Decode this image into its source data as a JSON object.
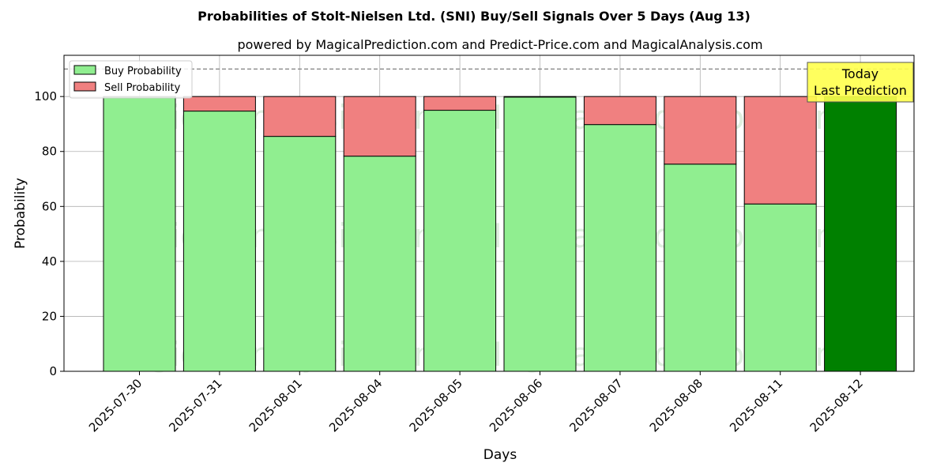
{
  "chart_data": {
    "type": "bar",
    "stacked": true,
    "title": "Probabilities of Stolt-Nielsen Ltd. (SNI) Buy/Sell Signals Over 5 Days (Aug 13)",
    "subtitle": "powered by MagicalPrediction.com and Predict-Price.com and MagicalAnalysis.com",
    "xlabel": "Days",
    "ylabel": "Probability",
    "ylim": [
      0,
      115
    ],
    "yticks": [
      0,
      20,
      40,
      60,
      80,
      100
    ],
    "grid": true,
    "legend_position": "top-left",
    "reference_line": 110,
    "categories": [
      "2025-07-30",
      "2025-07-31",
      "2025-08-01",
      "2025-08-04",
      "2025-08-05",
      "2025-08-06",
      "2025-08-07",
      "2025-08-08",
      "2025-08-11",
      "2025-08-12"
    ],
    "series": [
      {
        "name": "Buy Probability",
        "color": "#90ee90",
        "values": [
          100,
          94.7,
          85.5,
          78.3,
          95.0,
          99.8,
          89.8,
          75.4,
          60.9,
          100
        ]
      },
      {
        "name": "Sell Probability",
        "color": "#f08080",
        "values": [
          0,
          5.3,
          14.5,
          21.7,
          5.0,
          0.2,
          10.2,
          24.6,
          39.1,
          0
        ]
      }
    ],
    "highlight": {
      "index": 9,
      "color": "#008000",
      "label_line1": "Today",
      "label_line2": "Last Prediction",
      "box_color": "#ffff4d"
    },
    "watermarks": [
      "MagicalAnalysis.com",
      "MagicalPrediction.com"
    ]
  }
}
